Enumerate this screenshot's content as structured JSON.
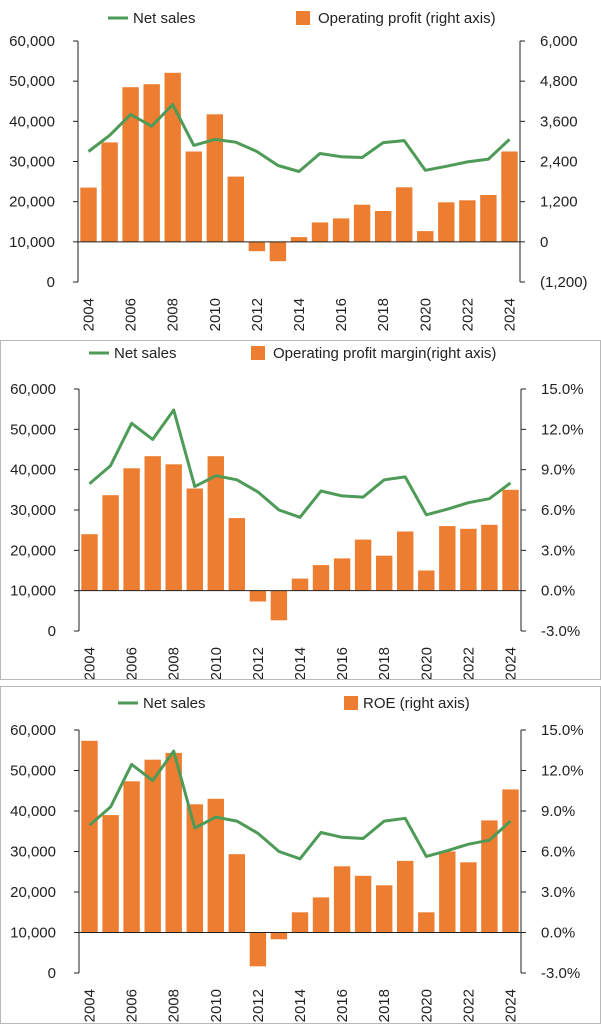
{
  "colors": {
    "bar": "#ED7D31",
    "line": "#4E9A57",
    "axis": "#222222"
  },
  "chart_data": [
    {
      "type": "bar+line",
      "legend": {
        "line": "Net sales",
        "bar": "Operating profit (right axis)",
        "placement": "top"
      },
      "x": [
        "2004",
        "2005",
        "2006",
        "2007",
        "2008",
        "2009",
        "2010",
        "2011",
        "2012",
        "2013",
        "2014",
        "2015",
        "2016",
        "2017",
        "2018",
        "2019",
        "2020",
        "2021",
        "2022",
        "2023",
        "2024"
      ],
      "x_tick_labels": [
        "2004",
        "2006",
        "2008",
        "2010",
        "2012",
        "2014",
        "2016",
        "2018",
        "2020",
        "2022",
        "2024"
      ],
      "left_axis": {
        "ylim": [
          0,
          60000
        ],
        "ticks": [
          "0",
          "10,000",
          "20,000",
          "30,000",
          "40,000",
          "50,000",
          "60,000"
        ]
      },
      "right_axis": {
        "ylim": [
          -1200,
          6000
        ],
        "ticks": [
          "(1,200)",
          "0",
          "1,200",
          "2,400",
          "3,600",
          "4,800",
          "6,000"
        ]
      },
      "series": [
        {
          "name": "Net sales",
          "kind": "line",
          "axis": "left",
          "values": [
            32500,
            36500,
            41700,
            38800,
            44200,
            34000,
            35500,
            34800,
            32500,
            29000,
            27500,
            32000,
            31200,
            31000,
            34700,
            35200,
            27800,
            28800,
            29900,
            30600,
            35500
          ]
        },
        {
          "name": "Operating profit (right axis)",
          "kind": "bar",
          "axis": "right",
          "values": [
            1620,
            2970,
            4620,
            4710,
            5050,
            2700,
            3810,
            1950,
            -280,
            -580,
            140,
            580,
            700,
            1110,
            920,
            1630,
            320,
            1180,
            1240,
            1400,
            2700
          ]
        }
      ]
    },
    {
      "type": "bar+line",
      "legend": {
        "line": "Net sales",
        "bar": "Operating profit margin(right axis)",
        "placement": "top"
      },
      "x": [
        "2004",
        "2005",
        "2006",
        "2007",
        "2008",
        "2009",
        "2010",
        "2011",
        "2012",
        "2013",
        "2014",
        "2015",
        "2016",
        "2017",
        "2018",
        "2019",
        "2020",
        "2021",
        "2022",
        "2023",
        "2024"
      ],
      "x_tick_labels": [
        "2004",
        "2006",
        "2008",
        "2010",
        "2012",
        "2014",
        "2016",
        "2018",
        "2020",
        "2022",
        "2024"
      ],
      "left_axis": {
        "ylim": [
          0,
          60000
        ],
        "ticks": [
          "0",
          "10,000",
          "20,000",
          "30,000",
          "40,000",
          "50,000",
          "60,000"
        ]
      },
      "right_axis": {
        "ylim": [
          -3,
          15
        ],
        "ticks": [
          "-3.0%",
          "0.0%",
          "3.0%",
          "6.0%",
          "9.0%",
          "12.0%",
          "15.0%"
        ]
      },
      "series": [
        {
          "name": "Net sales",
          "kind": "line",
          "axis": "left",
          "values": [
            36500,
            41000,
            51500,
            47500,
            54800,
            35800,
            38500,
            37500,
            34500,
            30000,
            28200,
            34700,
            33500,
            33200,
            37500,
            38200,
            28800,
            30200,
            31800,
            32800,
            36700
          ]
        },
        {
          "name": "Operating profit margin(right axis)",
          "kind": "bar",
          "axis": "right",
          "values": [
            4.2,
            7.1,
            9.1,
            10.0,
            9.4,
            7.6,
            10.0,
            5.4,
            -0.8,
            -2.2,
            0.9,
            1.9,
            2.4,
            3.8,
            2.6,
            4.4,
            1.5,
            4.8,
            4.6,
            4.9,
            7.5
          ]
        }
      ]
    },
    {
      "type": "bar+line",
      "legend": {
        "line": "Net sales",
        "bar": "ROE (right axis)",
        "placement": "top"
      },
      "x": [
        "2004",
        "2005",
        "2006",
        "2007",
        "2008",
        "2009",
        "2010",
        "2011",
        "2012",
        "2013",
        "2014",
        "2015",
        "2016",
        "2017",
        "2018",
        "2019",
        "2020",
        "2021",
        "2022",
        "2023",
        "2024"
      ],
      "x_tick_labels": [
        "2004",
        "2006",
        "2008",
        "2010",
        "2012",
        "2014",
        "2016",
        "2018",
        "2020",
        "2022",
        "2024"
      ],
      "left_axis": {
        "ylim": [
          0,
          60000
        ],
        "ticks": [
          "0",
          "10,000",
          "20,000",
          "30,000",
          "40,000",
          "50,000",
          "60,000"
        ]
      },
      "right_axis": {
        "ylim": [
          -3,
          15
        ],
        "ticks": [
          "-3.0%",
          "0.0%",
          "3.0%",
          "6.0%",
          "9.0%",
          "12.0%",
          "15.0%"
        ]
      },
      "series": [
        {
          "name": "Net sales",
          "kind": "line",
          "axis": "left",
          "values": [
            36500,
            41000,
            51500,
            47500,
            54800,
            35800,
            38500,
            37500,
            34500,
            30000,
            28200,
            34700,
            33500,
            33200,
            37500,
            38200,
            28800,
            30200,
            31800,
            32800,
            37500
          ]
        },
        {
          "name": "ROE (right axis)",
          "kind": "bar",
          "axis": "right",
          "values": [
            14.2,
            8.7,
            11.2,
            12.8,
            13.3,
            9.5,
            9.9,
            5.8,
            -2.5,
            -0.5,
            1.5,
            2.6,
            4.9,
            4.2,
            3.5,
            5.3,
            1.5,
            6.0,
            5.2,
            8.3,
            10.6
          ]
        }
      ]
    }
  ]
}
